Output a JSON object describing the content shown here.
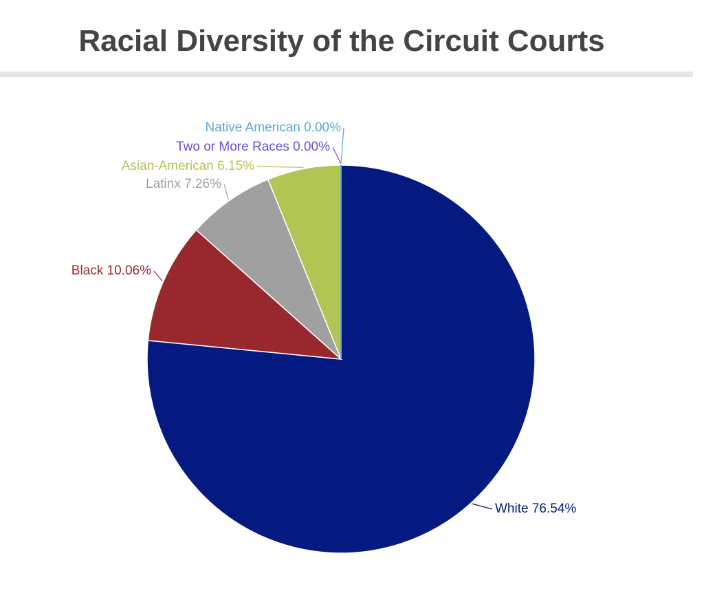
{
  "chart_data": {
    "type": "pie",
    "title": "Racial Diversity of the Circuit Courts",
    "categories": [
      "White",
      "Black",
      "Latinx",
      "Asian-American",
      "Two or More Races",
      "Native American"
    ],
    "values": [
      76.54,
      10.06,
      7.26,
      6.15,
      0.0,
      0.0
    ],
    "value_labels": [
      "76.54%",
      "10.06%",
      "7.26%",
      "6.15%",
      "0.00%",
      "0.00%"
    ],
    "colors": [
      "#041a80",
      "#98272e",
      "#a0a0a0",
      "#b0c553",
      "#6a4fd6",
      "#5fa9cf"
    ]
  }
}
